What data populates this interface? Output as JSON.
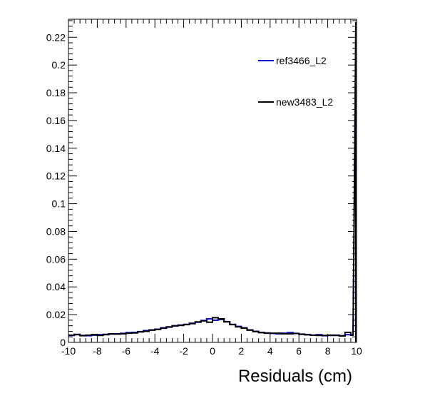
{
  "chart_data": {
    "type": "line",
    "title": "",
    "xlabel": "Residuals (cm)",
    "ylabel": "",
    "xlim": [
      -10,
      10
    ],
    "ylim": [
      0,
      0.233
    ],
    "x_ticks": [
      -10,
      -8,
      -6,
      -4,
      -2,
      0,
      2,
      4,
      6,
      8,
      10
    ],
    "x_tick_labels": [
      "-10",
      "-8",
      "-6",
      "-4",
      "-2",
      "0",
      "2",
      "4",
      "6",
      "8",
      "10"
    ],
    "y_ticks": [
      0,
      0.02,
      0.04,
      0.06,
      0.08,
      0.1,
      0.12,
      0.14,
      0.16,
      0.18,
      0.2,
      0.22
    ],
    "y_tick_labels": [
      "0",
      "0.02",
      "0.04",
      "0.06",
      "0.08",
      "0.1",
      "0.12",
      "0.14",
      "0.16",
      "0.18",
      "0.2",
      "0.22"
    ],
    "grid": false,
    "legend_position": "top-right",
    "bin_edges": [
      -10,
      -9.6,
      -9.2,
      -8.8,
      -8.4,
      -8,
      -7.6,
      -7.2,
      -6.8,
      -6.4,
      -6,
      -5.6,
      -5.2,
      -4.8,
      -4.4,
      -4,
      -3.6,
      -3.2,
      -2.8,
      -2.4,
      -2,
      -1.6,
      -1.2,
      -0.8,
      -0.4,
      0,
      0.4,
      0.8,
      1.2,
      1.6,
      2,
      2.4,
      2.8,
      3.2,
      3.6,
      4,
      4.4,
      4.8,
      5.2,
      5.6,
      6,
      6.4,
      6.8,
      7.2,
      7.6,
      8,
      8.4,
      8.8,
      9.2,
      9.6,
      10
    ],
    "series": [
      {
        "name": "ref3466_L2",
        "color": "#0000cc",
        "values": [
          0.005,
          0.0055,
          0.005,
          0.0048,
          0.0052,
          0.0055,
          0.0058,
          0.006,
          0.0062,
          0.0065,
          0.007,
          0.0072,
          0.0078,
          0.0085,
          0.009,
          0.0095,
          0.0105,
          0.011,
          0.0118,
          0.0125,
          0.013,
          0.0138,
          0.0145,
          0.0158,
          0.017,
          0.016,
          0.0165,
          0.015,
          0.013,
          0.0115,
          0.0105,
          0.009,
          0.008,
          0.0072,
          0.0068,
          0.0065,
          0.0062,
          0.0066,
          0.007,
          0.0065,
          0.006,
          0.0055,
          0.0052,
          0.0055,
          0.0048,
          0.005,
          0.0052,
          0.0048,
          0.0055,
          0.0055,
          0.224
        ]
      },
      {
        "name": "new3483_L2",
        "color": "#000000",
        "values": [
          0.0052,
          0.0058,
          0.0048,
          0.0052,
          0.0056,
          0.005,
          0.0055,
          0.0062,
          0.006,
          0.0062,
          0.0066,
          0.0068,
          0.0075,
          0.008,
          0.0088,
          0.0093,
          0.0102,
          0.0112,
          0.012,
          0.0122,
          0.0128,
          0.0135,
          0.0148,
          0.0155,
          0.0145,
          0.0178,
          0.017,
          0.0148,
          0.0128,
          0.0112,
          0.0102,
          0.0088,
          0.0078,
          0.007,
          0.0066,
          0.0066,
          0.0066,
          0.0062,
          0.0062,
          0.0064,
          0.0058,
          0.0055,
          0.0052,
          0.005,
          0.005,
          0.0052,
          0.005,
          0.0046,
          0.0072,
          0.0052,
          0.231
        ]
      }
    ]
  }
}
